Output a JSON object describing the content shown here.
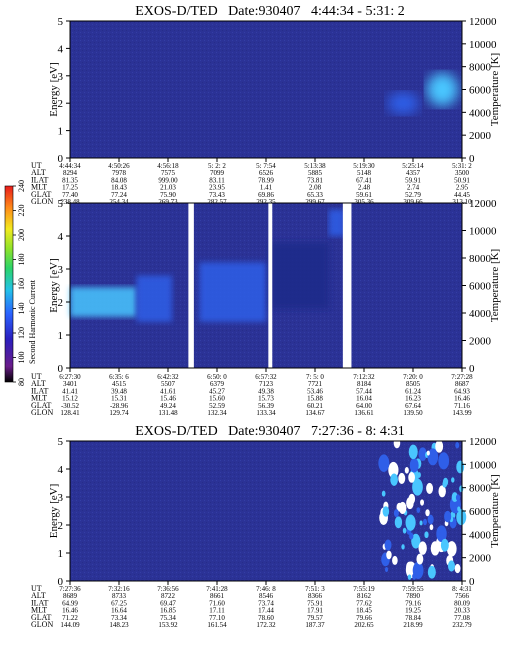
{
  "colors": {
    "spectrogram_background": "#2b3296",
    "low": "#1d2a8a",
    "mid": "#2f5fe8",
    "high": "#49c6ff",
    "peak": "#ffffff",
    "data_gap": "#ffffff",
    "frame": "#000000"
  },
  "colorbar": {
    "label": "Second Harmonic Current",
    "ticks": [
      "240",
      "220",
      "200",
      "180",
      "160",
      "140",
      "120",
      "100",
      "80"
    ],
    "min": 80,
    "max": 240,
    "gradient": [
      "#000000",
      "#6a1c8a",
      "#2a1fbf",
      "#2a63ff",
      "#23c2e8",
      "#2bd46a",
      "#8fe32a",
      "#f2ea1f",
      "#ff8a1a",
      "#e81b1b"
    ]
  },
  "panels": [
    {
      "title": "EXOS-D/TED   Date:930407   4:44:34 - 5:31: 2",
      "ylabel": "Energy [eV]",
      "y2label": "Temperature [K]",
      "y_ticks": [
        "0",
        "1",
        "2",
        "3",
        "4",
        "5"
      ],
      "y2_ticks": [
        "0",
        "2000",
        "4000",
        "6000",
        "8000",
        "10000",
        "12000"
      ],
      "row_labels": [
        "UT",
        "ALT",
        "ILAT",
        "MLT",
        "GLAT",
        "GLON"
      ],
      "columns": [
        [
          "4:44:34",
          "8294",
          "81.35",
          "17.25",
          "77.40",
          "238.48"
        ],
        [
          "4:50:26",
          "7978",
          "84.08",
          "18.43",
          "77.24",
          "254.34"
        ],
        [
          "4:56:18",
          "7575",
          "999.00",
          "21.03",
          "75.90",
          "269.73"
        ],
        [
          "5: 2: 2",
          "7099",
          "83.11",
          "23.95",
          "73.43",
          "282.57"
        ],
        [
          "5: 7:54",
          "6526",
          "78.99",
          "1.41",
          "69.86",
          "292.35"
        ],
        [
          "5:13:38",
          "5885",
          "73.81",
          "2.08",
          "65.33",
          "299.67"
        ],
        [
          "5:19:30",
          "5148",
          "67.41",
          "2.48",
          "59.61",
          "305.36"
        ],
        [
          "5:25:14",
          "4357",
          "59.91",
          "2.74",
          "52.79",
          "309.66"
        ],
        [
          "5:31: 2",
          "3500",
          "50.91",
          "2.95",
          "44.45",
          "313.10"
        ]
      ]
    },
    {
      "title": "EXOS-D/TED   Date:930407   6:27:30 - 7:27:28",
      "ylabel": "Energy [eV]",
      "y2label": "Temperature [K]",
      "y_ticks": [
        "0",
        "1",
        "2",
        "3",
        "4",
        "5"
      ],
      "y2_ticks": [
        "0",
        "2000",
        "4000",
        "6000",
        "8000",
        "10000",
        "12000"
      ],
      "row_labels": [
        "UT",
        "ALT",
        "ILAT",
        "MLT",
        "GLAT",
        "GLON"
      ],
      "columns": [
        [
          "6:27:30",
          "3401",
          "41.41",
          "15.12",
          "-30.52",
          "128.41"
        ],
        [
          "6:35: 6",
          "4515",
          "39.48",
          "15.31",
          "-28.96",
          "129.74"
        ],
        [
          "6:42:32",
          "5507",
          "41.61",
          "15.46",
          "49.24",
          "131.48"
        ],
        [
          "6:50: 0",
          "6379",
          "45.27",
          "15.60",
          "52.59",
          "132.34"
        ],
        [
          "6:57:32",
          "7123",
          "49.38",
          "15.73",
          "56.39",
          "133.34"
        ],
        [
          "7: 5: 0",
          "7721",
          "53.46",
          "15.88",
          "60.21",
          "134.67"
        ],
        [
          "7:12:32",
          "8184",
          "57.44",
          "16.04",
          "64.00",
          "136.61"
        ],
        [
          "7:20: 0",
          "8505",
          "61.24",
          "16.23",
          "67.64",
          "139.50"
        ],
        [
          "7:27:28",
          "8687",
          "64.93",
          "16.46",
          "71.16",
          "143.99"
        ]
      ]
    },
    {
      "title": "EXOS-D/TED   Date:930407   7:27:36 - 8: 4:31",
      "ylabel": "Energy [eV]",
      "y2label": "Temperature [K]",
      "y_ticks": [
        "0",
        "1",
        "2",
        "3",
        "4",
        "5"
      ],
      "y2_ticks": [
        "0",
        "2000",
        "4000",
        "6000",
        "8000",
        "10000",
        "12000"
      ],
      "row_labels": [
        "UT",
        "ALT",
        "ILAT",
        "MLT",
        "GLAT",
        "GLON"
      ],
      "columns": [
        [
          "7:27:36",
          "8689",
          "64.99",
          "16.46",
          "71.22",
          "144.09"
        ],
        [
          "7:32:16",
          "8733",
          "67.25",
          "16.64",
          "73.34",
          "148.23"
        ],
        [
          "7:36:56",
          "8722",
          "69.47",
          "16.85",
          "75.34",
          "153.92"
        ],
        [
          "7:41:28",
          "8661",
          "71.60",
          "17.11",
          "77.10",
          "161.54"
        ],
        [
          "7:46: 8",
          "8546",
          "73.74",
          "17.44",
          "78.60",
          "172.32"
        ],
        [
          "7:51: 3",
          "8366",
          "75.91",
          "17.91",
          "79.57",
          "187.37"
        ],
        [
          "7:55:19",
          "8162",
          "77.62",
          "18.45",
          "79.66",
          "202.65"
        ],
        [
          "7:59:55",
          "7890",
          "79.16",
          "19.25",
          "78.84",
          "218.99"
        ],
        [
          "8: 4:31",
          "7566",
          "80.09",
          "20.33",
          "77.08",
          "232.79"
        ]
      ]
    }
  ],
  "chart_data": [
    {
      "type": "heatmap",
      "title": "EXOS-D/TED   Date:930407   4:44:34 - 5:31: 2",
      "xlabel": "UT",
      "ylabel": "Energy [eV]",
      "y2label": "Temperature [K]",
      "ylim": [
        0,
        5
      ],
      "y2lim": [
        0,
        12000
      ],
      "x_ticks": [
        "4:44:34",
        "4:50:26",
        "4:56:18",
        "5: 2: 2",
        "5: 7:54",
        "5:13:38",
        "5:19:30",
        "5:25:14",
        "5:31: 2"
      ],
      "features": [
        {
          "kind": "blob",
          "x_frac": 0.95,
          "energy": 2.5,
          "energy_half_width": 0.6,
          "intensity": "high"
        },
        {
          "kind": "blob",
          "x_frac": 0.85,
          "energy": 2.0,
          "energy_half_width": 0.4,
          "intensity": "mid"
        }
      ],
      "gaps": []
    },
    {
      "type": "heatmap",
      "title": "EXOS-D/TED   Date:930407   6:27:30 - 7:27:28",
      "xlabel": "UT",
      "ylabel": "Energy [eV]",
      "y2label": "Temperature [K]",
      "ylim": [
        0,
        5
      ],
      "y2lim": [
        0,
        12000
      ],
      "x_ticks": [
        "6:27:30",
        "6:35: 6",
        "6:42:32",
        "6:50: 0",
        "6:57:32",
        "7: 5: 0",
        "7:12:32",
        "7:20: 0",
        "7:27:28"
      ],
      "features": [
        {
          "kind": "band",
          "x_start": 0.0,
          "x_end": 0.17,
          "energy": 2.0,
          "energy_half_width": 0.45,
          "intensity": "high"
        },
        {
          "kind": "band",
          "x_start": 0.17,
          "x_end": 0.26,
          "energy": 2.1,
          "energy_half_width": 0.7,
          "intensity": "mid"
        },
        {
          "kind": "band",
          "x_start": 0.33,
          "x_end": 0.5,
          "energy": 2.3,
          "energy_half_width": 0.9,
          "intensity": "mid"
        },
        {
          "kind": "band",
          "x_start": 0.51,
          "x_end": 0.66,
          "energy": 2.8,
          "energy_half_width": 1.0,
          "intensity": "low"
        },
        {
          "kind": "band",
          "x_start": 0.66,
          "x_end": 0.7,
          "energy": 4.4,
          "energy_half_width": 0.4,
          "intensity": "mid"
        }
      ],
      "gaps": [
        {
          "x_start": 0.302,
          "x_end": 0.316
        },
        {
          "x_start": 0.506,
          "x_end": 0.516
        },
        {
          "x_start": 0.696,
          "x_end": 0.718
        }
      ]
    },
    {
      "type": "heatmap",
      "title": "EXOS-D/TED   Date:930407   7:27:36 - 8: 4:31",
      "xlabel": "UT",
      "ylabel": "Energy [eV]",
      "y2label": "Temperature [K]",
      "ylim": [
        0,
        5
      ],
      "y2lim": [
        0,
        12000
      ],
      "x_ticks": [
        "7:27:36",
        "7:32:16",
        "7:36:56",
        "7:41:28",
        "7:46: 8",
        "7:51: 3",
        "7:55:19",
        "7:59:55",
        "8: 4:31"
      ],
      "features": [
        {
          "kind": "patchy",
          "x_start": 0.8,
          "x_end": 1.0,
          "energy_min": 0.0,
          "energy_max": 5.0,
          "intensity": "peak"
        }
      ],
      "gaps": []
    }
  ]
}
